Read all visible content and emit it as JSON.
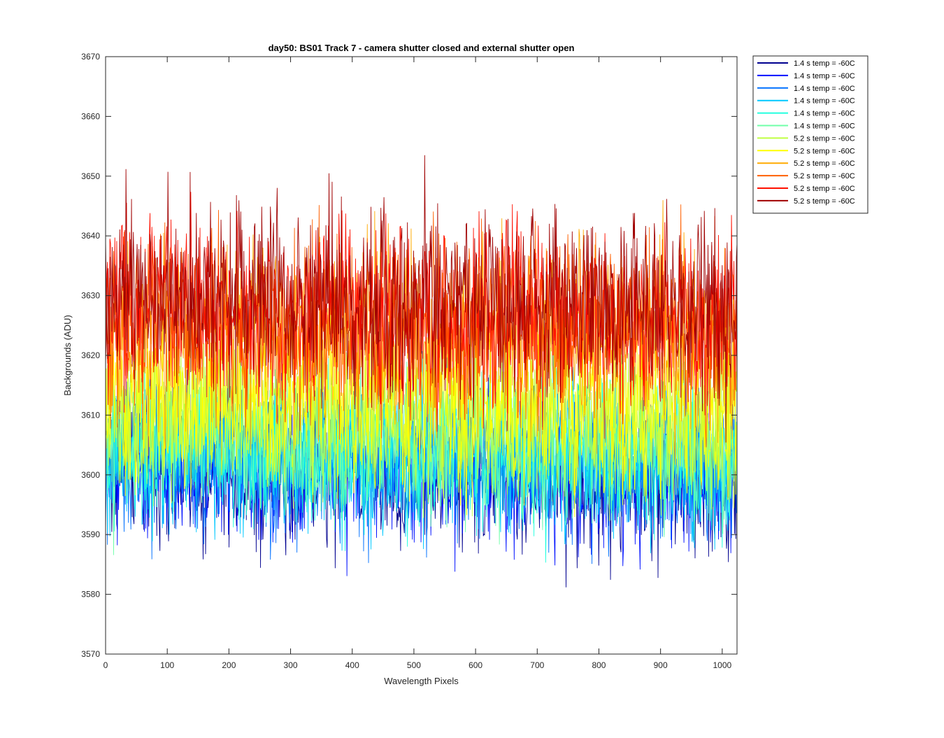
{
  "chart_data": {
    "type": "line",
    "title": "day50: BS01  Track 7 - camera shutter closed and external shutter open",
    "xlabel": "Wavelength Pixels",
    "ylabel": "Backgrounds (ADU)",
    "xlim": [
      0,
      1024
    ],
    "ylim": [
      3570,
      3670
    ],
    "xticks": [
      0,
      100,
      200,
      300,
      400,
      500,
      600,
      700,
      800,
      900,
      1000
    ],
    "yticks": [
      3570,
      3580,
      3590,
      3600,
      3610,
      3620,
      3630,
      3640,
      3650,
      3660,
      3670
    ],
    "xtick_labels": [
      "0",
      "100",
      "200",
      "300",
      "400",
      "500",
      "600",
      "700",
      "800",
      "900",
      "1000"
    ],
    "ytick_labels": [
      "3570",
      "3580",
      "3590",
      "3600",
      "3610",
      "3620",
      "3630",
      "3640",
      "3650",
      "3660",
      "3670"
    ],
    "grid": false,
    "legend_position": "outside-top-right",
    "n_points_per_series": 1024,
    "series": [
      {
        "name": "1.4 s temp = -60C",
        "color": "#00008f",
        "mean": 3601,
        "spread": 6.0
      },
      {
        "name": "1.4 s temp = -60C",
        "color": "#0010ff",
        "mean": 3602,
        "spread": 6.0
      },
      {
        "name": "1.4 s temp = -60C",
        "color": "#0070ff",
        "mean": 3603,
        "spread": 6.0
      },
      {
        "name": "1.4 s temp = -60C",
        "color": "#00c8ff",
        "mean": 3604,
        "spread": 6.0
      },
      {
        "name": "1.4 s temp = -60C",
        "color": "#20ffdf",
        "mean": 3605,
        "spread": 6.0
      },
      {
        "name": "1.4 s temp = -60C",
        "color": "#70ffaa",
        "mean": 3606,
        "spread": 6.0
      },
      {
        "name": "5.2 s temp = -60C",
        "color": "#bfff40",
        "mean": 3611,
        "spread": 7.0
      },
      {
        "name": "5.2 s temp = -60C",
        "color": "#ffff00",
        "mean": 3613,
        "spread": 7.0
      },
      {
        "name": "5.2 s temp = -60C",
        "color": "#ffaa00",
        "mean": 3624,
        "spread": 7.5
      },
      {
        "name": "5.2 s temp = -60C",
        "color": "#ff6000",
        "mean": 3626,
        "spread": 7.5
      },
      {
        "name": "5.2 s temp = -60C",
        "color": "#ff1000",
        "mean": 3628,
        "spread": 7.5
      },
      {
        "name": "5.2 s temp = -60C",
        "color": "#a00000",
        "mean": 3630,
        "spread": 7.5
      }
    ]
  }
}
